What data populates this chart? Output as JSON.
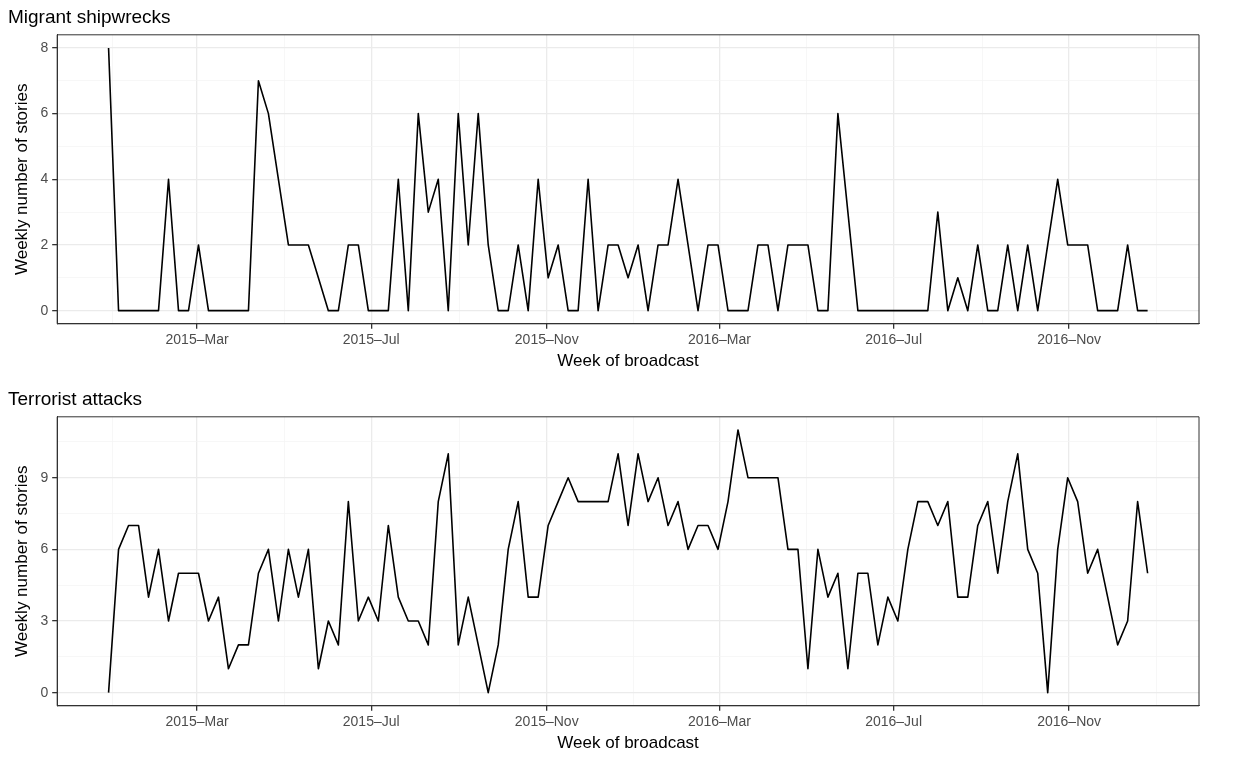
{
  "chart_data": [
    {
      "type": "line",
      "title": "Migrant shipwrecks",
      "xlabel": "Week of broadcast",
      "ylabel": "Weekly number of stories",
      "grid": true,
      "legend": false,
      "marker": "none",
      "line_style": "solid",
      "x": [
        "2014-12-29",
        "2015-01-05",
        "2015-01-12",
        "2015-01-19",
        "2015-01-26",
        "2015-02-02",
        "2015-02-09",
        "2015-02-16",
        "2015-02-23",
        "2015-03-02",
        "2015-03-09",
        "2015-03-16",
        "2015-03-23",
        "2015-03-30",
        "2015-04-06",
        "2015-04-13",
        "2015-04-20",
        "2015-04-27",
        "2015-05-04",
        "2015-05-11",
        "2015-05-18",
        "2015-05-25",
        "2015-06-01",
        "2015-06-08",
        "2015-06-15",
        "2015-06-22",
        "2015-06-29",
        "2015-07-06",
        "2015-07-13",
        "2015-07-20",
        "2015-07-27",
        "2015-08-03",
        "2015-08-10",
        "2015-08-17",
        "2015-08-24",
        "2015-08-31",
        "2015-09-07",
        "2015-09-14",
        "2015-09-21",
        "2015-09-28",
        "2015-10-05",
        "2015-10-12",
        "2015-10-19",
        "2015-10-26",
        "2015-11-02",
        "2015-11-09",
        "2015-11-16",
        "2015-11-23",
        "2015-11-30",
        "2015-12-07",
        "2015-12-14",
        "2015-12-21",
        "2015-12-28",
        "2016-01-04",
        "2016-01-11",
        "2016-01-18",
        "2016-01-25",
        "2016-02-01",
        "2016-02-08",
        "2016-02-15",
        "2016-02-22",
        "2016-02-29",
        "2016-03-07",
        "2016-03-14",
        "2016-03-21",
        "2016-03-28",
        "2016-04-04",
        "2016-04-11",
        "2016-04-18",
        "2016-04-25",
        "2016-05-02",
        "2016-05-09",
        "2016-05-16",
        "2016-05-23",
        "2016-05-30",
        "2016-06-06",
        "2016-06-13",
        "2016-06-20",
        "2016-06-27",
        "2016-07-04",
        "2016-07-11",
        "2016-07-18",
        "2016-07-25",
        "2016-08-01",
        "2016-08-08",
        "2016-08-15",
        "2016-08-22",
        "2016-08-29",
        "2016-09-05",
        "2016-09-12",
        "2016-09-19",
        "2016-09-26",
        "2016-10-03",
        "2016-10-10",
        "2016-10-17",
        "2016-10-24",
        "2016-10-31",
        "2016-11-07",
        "2016-11-14",
        "2016-11-21",
        "2016-11-28",
        "2016-12-05",
        "2016-12-12",
        "2016-12-19",
        "2016-12-26"
      ],
      "series": [
        {
          "color": "#000000",
          "values": [
            8,
            0,
            0,
            0,
            0,
            0,
            4,
            0,
            0,
            2,
            0,
            0,
            0,
            0,
            0,
            7,
            6,
            4,
            2,
            2,
            2,
            1,
            0,
            0,
            2,
            2,
            0,
            0,
            0,
            4,
            0,
            6,
            3,
            4,
            0,
            6,
            2,
            6,
            2,
            0,
            0,
            2,
            0,
            4,
            1,
            2,
            0,
            0,
            4,
            0,
            2,
            2,
            1,
            2,
            0,
            2,
            2,
            4,
            2,
            0,
            2,
            2,
            0,
            0,
            0,
            2,
            2,
            0,
            2,
            2,
            2,
            0,
            0,
            6,
            3,
            0,
            0,
            0,
            0,
            0,
            0,
            0,
            0,
            3,
            0,
            1,
            0,
            2,
            0,
            0,
            2,
            0,
            2,
            0,
            2,
            4,
            2,
            2,
            2,
            0,
            0,
            0,
            2,
            0,
            0
          ]
        }
      ],
      "xlim": [
        "2014-11-23",
        "2017-01-31"
      ],
      "xticks": [
        {
          "value": "2015-01-01",
          "label": null
        },
        {
          "value": "2015-03-01",
          "label": "2015–Mar"
        },
        {
          "value": "2015-05-01",
          "label": null
        },
        {
          "value": "2015-07-01",
          "label": "2015–Jul"
        },
        {
          "value": "2015-09-01",
          "label": null
        },
        {
          "value": "2015-11-01",
          "label": "2015–Nov"
        },
        {
          "value": "2016-01-01",
          "label": null
        },
        {
          "value": "2016-03-01",
          "label": "2016–Mar"
        },
        {
          "value": "2016-05-01",
          "label": null
        },
        {
          "value": "2016-07-01",
          "label": "2016–Jul"
        },
        {
          "value": "2016-09-01",
          "label": null
        },
        {
          "value": "2016-11-01",
          "label": "2016–Nov"
        },
        {
          "value": "2017-01-01",
          "label": null
        }
      ],
      "ylim": [
        -0.4,
        8.4
      ],
      "yticks": [
        0,
        {
          "value": 1,
          "label": null
        },
        2,
        {
          "value": 3,
          "label": null
        },
        4,
        {
          "value": 5,
          "label": null
        },
        6,
        {
          "value": 7,
          "label": null
        },
        8
      ]
    },
    {
      "type": "line",
      "title": "Terrorist attacks",
      "xlabel": "Week of broadcast",
      "ylabel": "Weekly number of stories",
      "grid": true,
      "legend": false,
      "marker": "none",
      "line_style": "solid",
      "x": [
        "2014-12-29",
        "2015-01-05",
        "2015-01-12",
        "2015-01-19",
        "2015-01-26",
        "2015-02-02",
        "2015-02-09",
        "2015-02-16",
        "2015-02-23",
        "2015-03-02",
        "2015-03-09",
        "2015-03-16",
        "2015-03-23",
        "2015-03-30",
        "2015-04-06",
        "2015-04-13",
        "2015-04-20",
        "2015-04-27",
        "2015-05-04",
        "2015-05-11",
        "2015-05-18",
        "2015-05-25",
        "2015-06-01",
        "2015-06-08",
        "2015-06-15",
        "2015-06-22",
        "2015-06-29",
        "2015-07-06",
        "2015-07-13",
        "2015-07-20",
        "2015-07-27",
        "2015-08-03",
        "2015-08-10",
        "2015-08-17",
        "2015-08-24",
        "2015-08-31",
        "2015-09-07",
        "2015-09-14",
        "2015-09-21",
        "2015-09-28",
        "2015-10-05",
        "2015-10-12",
        "2015-10-19",
        "2015-10-26",
        "2015-11-02",
        "2015-11-09",
        "2015-11-16",
        "2015-11-23",
        "2015-11-30",
        "2015-12-07",
        "2015-12-14",
        "2015-12-21",
        "2015-12-28",
        "2016-01-04",
        "2016-01-11",
        "2016-01-18",
        "2016-01-25",
        "2016-02-01",
        "2016-02-08",
        "2016-02-15",
        "2016-02-22",
        "2016-02-29",
        "2016-03-07",
        "2016-03-14",
        "2016-03-21",
        "2016-03-28",
        "2016-04-04",
        "2016-04-11",
        "2016-04-18",
        "2016-04-25",
        "2016-05-02",
        "2016-05-09",
        "2016-05-16",
        "2016-05-23",
        "2016-05-30",
        "2016-06-06",
        "2016-06-13",
        "2016-06-20",
        "2016-06-27",
        "2016-07-04",
        "2016-07-11",
        "2016-07-18",
        "2016-07-25",
        "2016-08-01",
        "2016-08-08",
        "2016-08-15",
        "2016-08-22",
        "2016-08-29",
        "2016-09-05",
        "2016-09-12",
        "2016-09-19",
        "2016-09-26",
        "2016-10-03",
        "2016-10-10",
        "2016-10-17",
        "2016-10-24",
        "2016-10-31",
        "2016-11-07",
        "2016-11-14",
        "2016-11-21",
        "2016-11-28",
        "2016-12-05",
        "2016-12-12",
        "2016-12-19",
        "2016-12-26"
      ],
      "series": [
        {
          "color": "#000000",
          "values": [
            0,
            6,
            7,
            7,
            4,
            6,
            3,
            5,
            5,
            5,
            3,
            4,
            1,
            2,
            2,
            5,
            6,
            3,
            6,
            4,
            6,
            1,
            3,
            2,
            8,
            3,
            4,
            3,
            7,
            4,
            3,
            3,
            2,
            8,
            10,
            2,
            4,
            2,
            0,
            2,
            6,
            8,
            4,
            4,
            7,
            8,
            9,
            8,
            8,
            8,
            8,
            10,
            7,
            10,
            8,
            9,
            7,
            8,
            6,
            7,
            7,
            6,
            8,
            11,
            9,
            9,
            9,
            9,
            6,
            6,
            1,
            6,
            4,
            5,
            1,
            5,
            5,
            2,
            4,
            3,
            6,
            8,
            8,
            7,
            8,
            4,
            4,
            7,
            8,
            5,
            8,
            10,
            6,
            5,
            0,
            6,
            9,
            8,
            5,
            6,
            4,
            2,
            3,
            8,
            5
          ]
        }
      ],
      "xlim": [
        "2014-11-23",
        "2017-01-31"
      ],
      "xticks": [
        {
          "value": "2015-01-01",
          "label": null
        },
        {
          "value": "2015-03-01",
          "label": "2015–Mar"
        },
        {
          "value": "2015-05-01",
          "label": null
        },
        {
          "value": "2015-07-01",
          "label": "2015–Jul"
        },
        {
          "value": "2015-09-01",
          "label": null
        },
        {
          "value": "2015-11-01",
          "label": "2015–Nov"
        },
        {
          "value": "2016-01-01",
          "label": null
        },
        {
          "value": "2016-03-01",
          "label": "2016–Mar"
        },
        {
          "value": "2016-05-01",
          "label": null
        },
        {
          "value": "2016-07-01",
          "label": "2016–Jul"
        },
        {
          "value": "2016-09-01",
          "label": null
        },
        {
          "value": "2016-11-01",
          "label": "2016–Nov"
        },
        {
          "value": "2017-01-01",
          "label": null
        }
      ],
      "ylim": [
        -0.55,
        11.55
      ],
      "yticks": [
        0,
        {
          "value": 1.5,
          "label": null
        },
        3,
        {
          "value": 4.5,
          "label": null
        },
        6,
        {
          "value": 7.5,
          "label": null
        },
        9,
        {
          "value": 10.5,
          "label": null
        }
      ]
    }
  ]
}
